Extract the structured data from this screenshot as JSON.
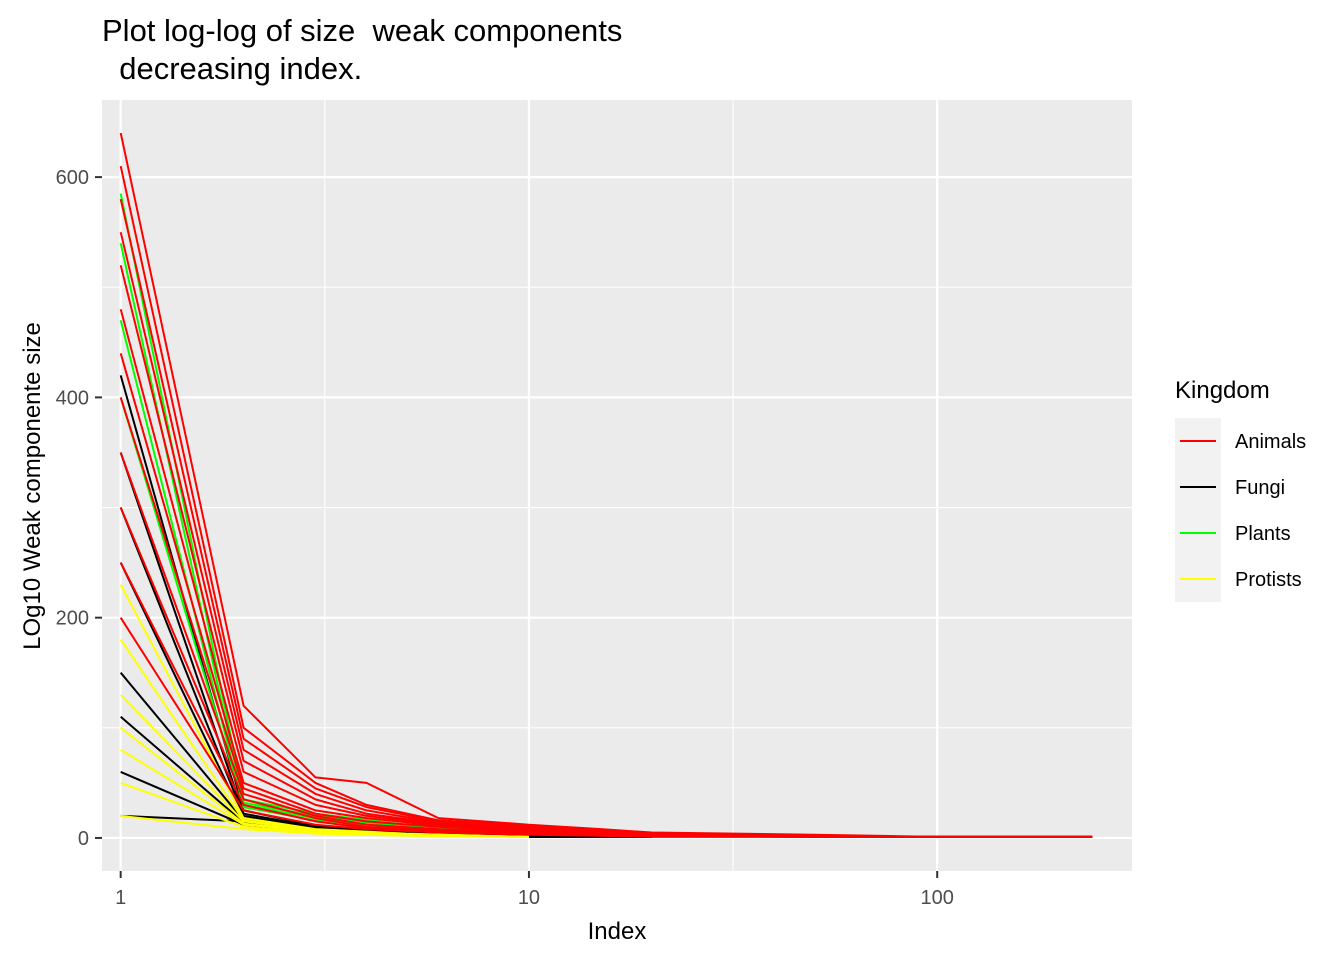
{
  "chart_data": {
    "type": "line",
    "title_lines": [
      "Plot log-log of size  weak components",
      "  decreasing index."
    ],
    "xlabel": "Index",
    "ylabel": "LOg10 Weak componente size",
    "x_scale": "log",
    "xlim": [
      0.9,
      300
    ],
    "ylim": [
      -30,
      670
    ],
    "x_ticks": [
      {
        "value": 1,
        "label": "1"
      },
      {
        "value": 10,
        "label": "10"
      },
      {
        "value": 100,
        "label": "100"
      }
    ],
    "y_ticks": [
      {
        "value": 0,
        "label": "0"
      },
      {
        "value": 200,
        "label": "200"
      },
      {
        "value": 400,
        "label": "400"
      },
      {
        "value": 600,
        "label": "600"
      }
    ],
    "grid": true,
    "legend": {
      "title": "Kingdom",
      "position": "right",
      "entries": [
        {
          "label": "Animals",
          "color": "#ff0000"
        },
        {
          "label": "Fungi",
          "color": "#000000"
        },
        {
          "label": "Plants",
          "color": "#00ff00"
        },
        {
          "label": "Protists",
          "color": "#ffff00"
        }
      ]
    },
    "series": [
      {
        "kingdom": "Fungi",
        "color": "#000000",
        "x": [
          1,
          2,
          3,
          5,
          10,
          20
        ],
        "y": [
          20,
          15,
          6,
          3,
          1,
          1
        ]
      },
      {
        "kingdom": "Fungi",
        "color": "#000000",
        "x": [
          1,
          2,
          3,
          5,
          10,
          20
        ],
        "y": [
          60,
          12,
          5,
          3,
          1,
          1
        ]
      },
      {
        "kingdom": "Fungi",
        "color": "#000000",
        "x": [
          1,
          2,
          3,
          5,
          10,
          20
        ],
        "y": [
          110,
          14,
          6,
          3,
          2,
          1
        ]
      },
      {
        "kingdom": "Fungi",
        "color": "#000000",
        "x": [
          1,
          2,
          3,
          5,
          10,
          20
        ],
        "y": [
          150,
          16,
          7,
          4,
          2,
          1
        ]
      },
      {
        "kingdom": "Fungi",
        "color": "#000000",
        "x": [
          1,
          2,
          3,
          5,
          10,
          20
        ],
        "y": [
          250,
          18,
          8,
          4,
          2,
          1
        ]
      },
      {
        "kingdom": "Fungi",
        "color": "#000000",
        "x": [
          1,
          2,
          3,
          5,
          10,
          20
        ],
        "y": [
          300,
          20,
          9,
          4,
          2,
          1
        ]
      },
      {
        "kingdom": "Fungi",
        "color": "#000000",
        "x": [
          1,
          2,
          3,
          5,
          10,
          20
        ],
        "y": [
          350,
          22,
          10,
          5,
          3,
          1
        ]
      },
      {
        "kingdom": "Fungi",
        "color": "#000000",
        "x": [
          1,
          2,
          3,
          5,
          10,
          20
        ],
        "y": [
          420,
          25,
          11,
          5,
          3,
          1
        ]
      },
      {
        "kingdom": "Protists",
        "color": "#ffff00",
        "x": [
          1,
          2,
          3,
          5,
          10
        ],
        "y": [
          20,
          8,
          4,
          2,
          1
        ]
      },
      {
        "kingdom": "Protists",
        "color": "#ffff00",
        "x": [
          1,
          2,
          3,
          5,
          10
        ],
        "y": [
          50,
          10,
          5,
          3,
          1
        ]
      },
      {
        "kingdom": "Protists",
        "color": "#ffff00",
        "x": [
          1,
          2,
          3,
          5,
          10
        ],
        "y": [
          80,
          12,
          6,
          3,
          1
        ]
      },
      {
        "kingdom": "Protists",
        "color": "#ffff00",
        "x": [
          1,
          2,
          3,
          5,
          10
        ],
        "y": [
          100,
          13,
          6,
          3,
          1
        ]
      },
      {
        "kingdom": "Protists",
        "color": "#ffff00",
        "x": [
          1,
          2,
          3,
          5,
          10
        ],
        "y": [
          130,
          15,
          7,
          3,
          1
        ]
      },
      {
        "kingdom": "Protists",
        "color": "#ffff00",
        "x": [
          1,
          2,
          3,
          5,
          10
        ],
        "y": [
          180,
          16,
          7,
          3,
          1
        ]
      },
      {
        "kingdom": "Protists",
        "color": "#ffff00",
        "x": [
          1,
          2,
          3,
          5,
          10
        ],
        "y": [
          230,
          18,
          8,
          4,
          1
        ]
      },
      {
        "kingdom": "Plants",
        "color": "#00ff00",
        "x": [
          1,
          2,
          3,
          5,
          10,
          20,
          50
        ],
        "y": [
          400,
          30,
          18,
          10,
          5,
          3,
          1
        ]
      },
      {
        "kingdom": "Plants",
        "color": "#00ff00",
        "x": [
          1,
          2,
          3,
          5,
          10,
          20,
          50
        ],
        "y": [
          470,
          28,
          16,
          9,
          5,
          2,
          1
        ]
      },
      {
        "kingdom": "Plants",
        "color": "#00ff00",
        "x": [
          1,
          2,
          3,
          5,
          10,
          20,
          50
        ],
        "y": [
          540,
          32,
          20,
          11,
          6,
          3,
          1
        ]
      },
      {
        "kingdom": "Plants",
        "color": "#00ff00",
        "x": [
          1,
          2,
          3,
          5,
          10,
          20,
          50
        ],
        "y": [
          585,
          35,
          22,
          12,
          6,
          3,
          1
        ]
      },
      {
        "kingdom": "Animals",
        "color": "#ff0000",
        "x": [
          1,
          2,
          3,
          4,
          6,
          10,
          15,
          20,
          50,
          100,
          240
        ],
        "y": [
          640,
          120,
          55,
          50,
          18,
          12,
          8,
          5,
          3,
          1,
          1
        ]
      },
      {
        "kingdom": "Animals",
        "color": "#ff0000",
        "x": [
          1,
          2,
          3,
          4,
          6,
          10,
          15,
          20,
          50,
          100,
          240
        ],
        "y": [
          610,
          100,
          50,
          30,
          16,
          11,
          7,
          4,
          2,
          1,
          1
        ]
      },
      {
        "kingdom": "Animals",
        "color": "#ff0000",
        "x": [
          1,
          2,
          3,
          4,
          6,
          10,
          15,
          20,
          50,
          100,
          240
        ],
        "y": [
          580,
          90,
          45,
          28,
          15,
          10,
          6,
          4,
          2,
          1,
          1
        ]
      },
      {
        "kingdom": "Animals",
        "color": "#ff0000",
        "x": [
          1,
          2,
          3,
          4,
          6,
          10,
          15,
          20,
          50,
          100,
          240
        ],
        "y": [
          550,
          80,
          40,
          25,
          14,
          9,
          6,
          4,
          2,
          1,
          1
        ]
      },
      {
        "kingdom": "Animals",
        "color": "#ff0000",
        "x": [
          1,
          2,
          3,
          4,
          6,
          10,
          15,
          20,
          50,
          100,
          240
        ],
        "y": [
          520,
          70,
          35,
          22,
          13,
          8,
          5,
          3,
          2,
          1,
          1
        ]
      },
      {
        "kingdom": "Animals",
        "color": "#ff0000",
        "x": [
          1,
          2,
          3,
          4,
          6,
          10,
          15,
          20,
          50,
          100,
          240
        ],
        "y": [
          480,
          60,
          30,
          20,
          12,
          8,
          5,
          3,
          2,
          1,
          1
        ]
      },
      {
        "kingdom": "Animals",
        "color": "#ff0000",
        "x": [
          1,
          2,
          3,
          4,
          6,
          10,
          15,
          20,
          50,
          100,
          240
        ],
        "y": [
          440,
          50,
          25,
          18,
          11,
          7,
          4,
          3,
          2,
          1,
          1
        ]
      },
      {
        "kingdom": "Animals",
        "color": "#ff0000",
        "x": [
          1,
          2,
          3,
          4,
          6,
          10,
          15,
          20,
          50,
          100,
          240
        ],
        "y": [
          400,
          45,
          22,
          15,
          10,
          6,
          4,
          3,
          2,
          1,
          1
        ]
      },
      {
        "kingdom": "Animals",
        "color": "#ff0000",
        "x": [
          1,
          2,
          3,
          4,
          6,
          10,
          15,
          20,
          50,
          100,
          240
        ],
        "y": [
          350,
          40,
          20,
          12,
          8,
          5,
          3,
          2,
          1,
          1,
          1
        ]
      },
      {
        "kingdom": "Animals",
        "color": "#ff0000",
        "x": [
          1,
          2,
          3,
          4,
          6,
          10,
          15,
          20,
          50,
          100,
          240
        ],
        "y": [
          300,
          35,
          18,
          10,
          7,
          4,
          3,
          2,
          1,
          1,
          1
        ]
      },
      {
        "kingdom": "Animals",
        "color": "#ff0000",
        "x": [
          1,
          2,
          3,
          4,
          6,
          10,
          15,
          20,
          50,
          100,
          240
        ],
        "y": [
          250,
          30,
          15,
          9,
          6,
          4,
          2,
          2,
          1,
          1,
          1
        ]
      },
      {
        "kingdom": "Animals",
        "color": "#ff0000",
        "x": [
          1,
          2,
          3,
          4,
          6,
          10,
          15,
          20,
          50,
          100,
          240
        ],
        "y": [
          200,
          25,
          12,
          8,
          5,
          3,
          2,
          1,
          1,
          1,
          1
        ]
      }
    ]
  }
}
